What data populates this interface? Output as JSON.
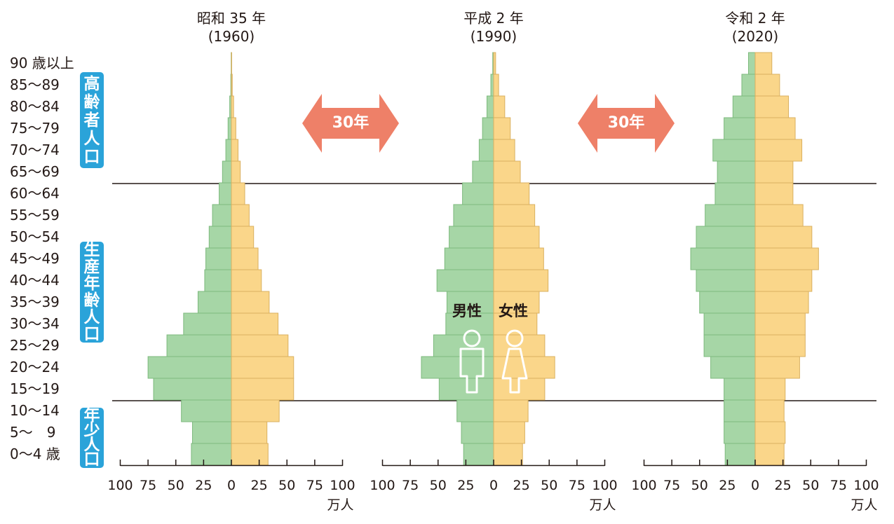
{
  "chart_data": {
    "type": "bar",
    "subtype": "population-pyramid",
    "age_groups": [
      "0〜4 歳",
      "5〜　9",
      "10〜14",
      "15〜19",
      "20〜24",
      "25〜29",
      "30〜34",
      "35〜39",
      "40〜44",
      "45〜49",
      "50〜54",
      "55〜59",
      "60〜64",
      "65〜69",
      "70〜74",
      "75〜79",
      "80〜84",
      "85〜89",
      "90 歳以上"
    ],
    "x_ticks": [
      "100",
      "75",
      "50",
      "25",
      "0",
      "25",
      "50",
      "75",
      "100"
    ],
    "xlim": [
      -100,
      100
    ],
    "unit": "万人",
    "colors": {
      "male": "#a6d6a6",
      "female": "#fad68a",
      "male_stroke": "#7db97d",
      "female_stroke": "#d9b060"
    },
    "pyramids": [
      {
        "title": "昭和 35 年",
        "year": "(1960)",
        "male": [
          36,
          35,
          45,
          70,
          75,
          58,
          43,
          30,
          24,
          23,
          20,
          17,
          11,
          8,
          5,
          3,
          1.5,
          0.5,
          0.2
        ],
        "female": [
          33,
          32,
          43,
          56,
          56,
          51,
          42,
          34,
          27,
          24,
          20,
          16,
          12,
          8,
          6,
          4,
          2,
          0.8,
          0.3
        ]
      },
      {
        "title": "平成 2 年",
        "year": "(1990)",
        "male": [
          27,
          29,
          33,
          49,
          65,
          54,
          43,
          42,
          51,
          44,
          40,
          36,
          28,
          19,
          13,
          10,
          6,
          2.5,
          0.8
        ],
        "female": [
          26,
          28,
          31,
          46,
          55,
          46,
          39,
          41,
          49,
          45,
          41,
          37,
          32,
          24,
          19,
          15,
          10,
          4.5,
          1.8
        ]
      },
      {
        "title": "令和 2 年",
        "year": "(2020)",
        "male": [
          27,
          28,
          28,
          28,
          40,
          46,
          46,
          50,
          53,
          58,
          53,
          45,
          36,
          34,
          38,
          28,
          20,
          12,
          6
        ],
        "female": [
          26,
          27,
          26,
          27,
          40,
          45,
          45,
          48,
          51,
          57,
          51,
          43,
          34,
          34,
          42,
          36,
          30,
          22,
          15
        ]
      }
    ],
    "groups": [
      {
        "label": [
          "高",
          "齢",
          "者",
          "人",
          "口"
        ]
      },
      {
        "label": [
          "生",
          "産",
          "年",
          "齢",
          "人",
          "口"
        ]
      },
      {
        "label": [
          "年",
          "少",
          "人",
          "口"
        ]
      }
    ],
    "arrows": [
      {
        "label": "30年"
      },
      {
        "label": "30年"
      }
    ],
    "gender_labels": {
      "male": "男性",
      "female": "女性"
    }
  }
}
